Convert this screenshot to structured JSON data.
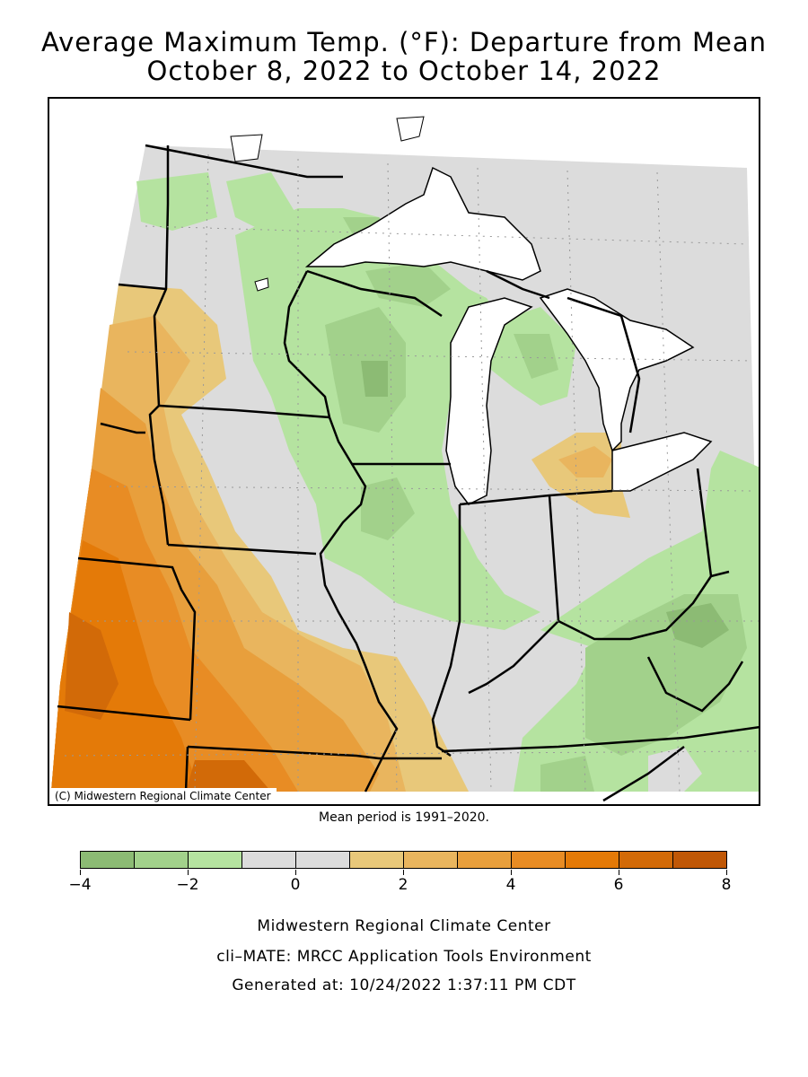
{
  "title_line1": "Average Maximum Temp. (°F): Departure from Mean",
  "title_line2": "October 8, 2022 to October 14, 2022",
  "credit": "(C) Midwestern Regional Climate Center",
  "mean_period": "Mean period is 1991–2020.",
  "legend": {
    "colors": [
      "#8cbb74",
      "#a2d18b",
      "#b5e3a0",
      "#dcdcdc",
      "#dcdcdc",
      "#e8c87a",
      "#e9b55e",
      "#e89f3c",
      "#e88c24",
      "#e47a08",
      "#d26a08",
      "#c05706"
    ],
    "ticks": [
      "−4",
      "−2",
      "0",
      "2",
      "4",
      "6",
      "8"
    ]
  },
  "footer": {
    "line1": "Midwestern Regional Climate Center",
    "line2": "cli–MATE: MRCC Application Tools Environment",
    "line3": "Generated at: 10/24/2022 1:37:11 PM CDT"
  }
}
